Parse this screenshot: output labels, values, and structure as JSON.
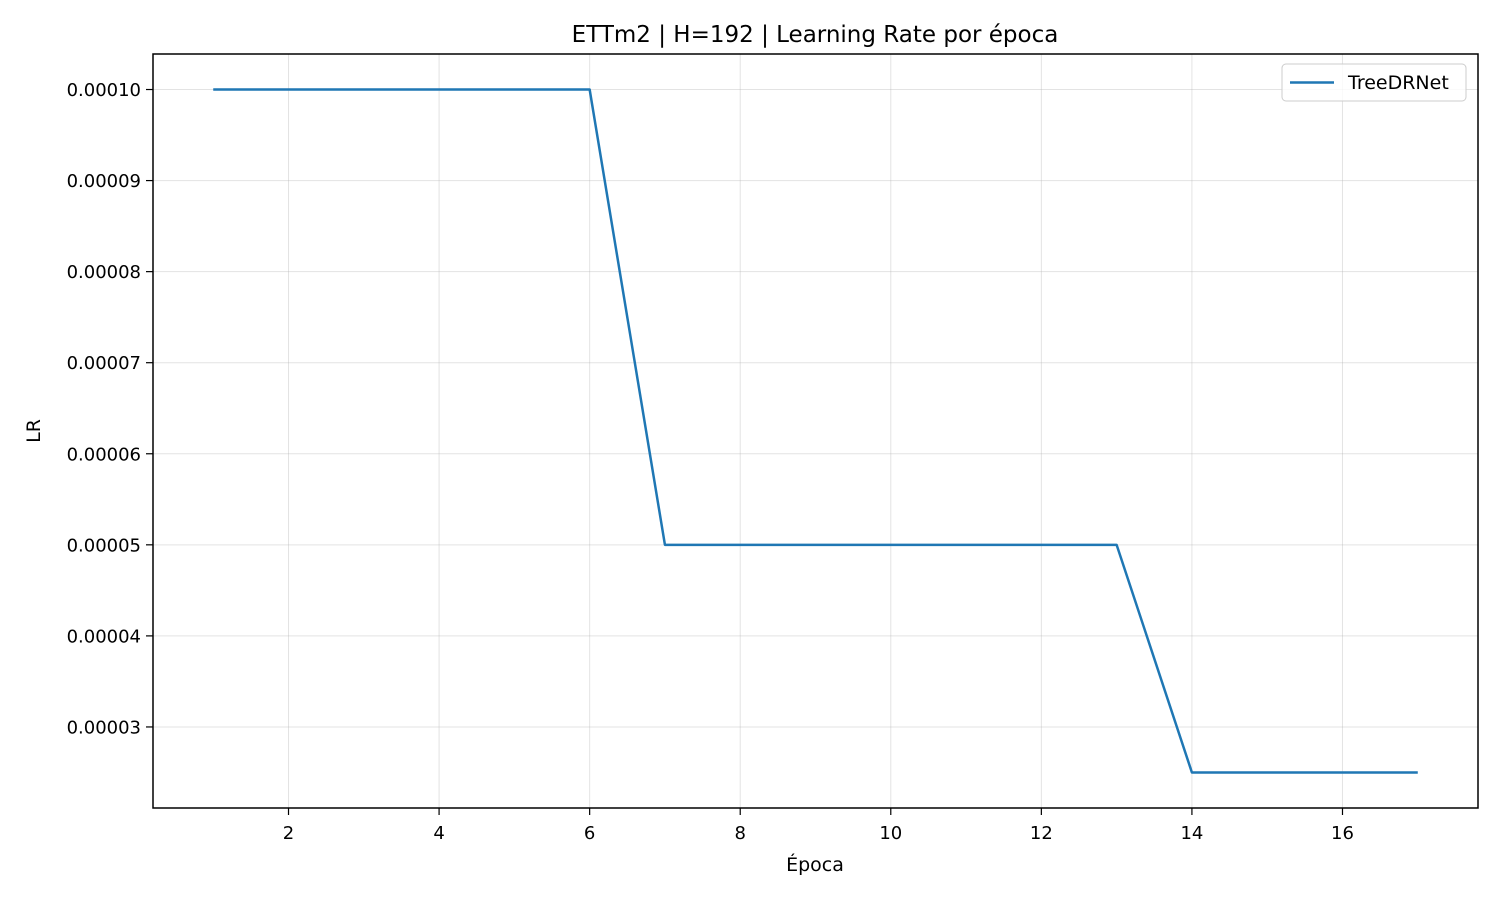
{
  "chart_data": {
    "type": "line",
    "title": "ETTm2 | H=192 | Learning Rate por época",
    "xlabel": "Época",
    "ylabel": "LR",
    "xlim": [
      0.2,
      17.8
    ],
    "ylim": [
      2.11e-05,
      0.0001039
    ],
    "xticks": [
      2,
      4,
      6,
      8,
      10,
      12,
      14,
      16
    ],
    "yticks": [
      3e-05,
      4e-05,
      5e-05,
      6e-05,
      7e-05,
      8e-05,
      9e-05,
      0.0001
    ],
    "ytick_labels": [
      "0.00003",
      "0.00004",
      "0.00005",
      "0.00006",
      "0.00007",
      "0.00008",
      "0.00009",
      "0.00010"
    ],
    "grid": true,
    "legend_position": "top-right",
    "x": [
      1,
      2,
      3,
      4,
      5,
      6,
      7,
      8,
      9,
      10,
      11,
      12,
      13,
      14,
      15,
      16,
      17
    ],
    "series": [
      {
        "name": "TreeDRNet",
        "color": "#1f77b4",
        "values": [
          0.0001,
          0.0001,
          0.0001,
          0.0001,
          0.0001,
          0.0001,
          5e-05,
          5e-05,
          5e-05,
          5e-05,
          5e-05,
          5e-05,
          5e-05,
          2.5e-05,
          2.5e-05,
          2.5e-05,
          2.5e-05
        ]
      }
    ]
  }
}
